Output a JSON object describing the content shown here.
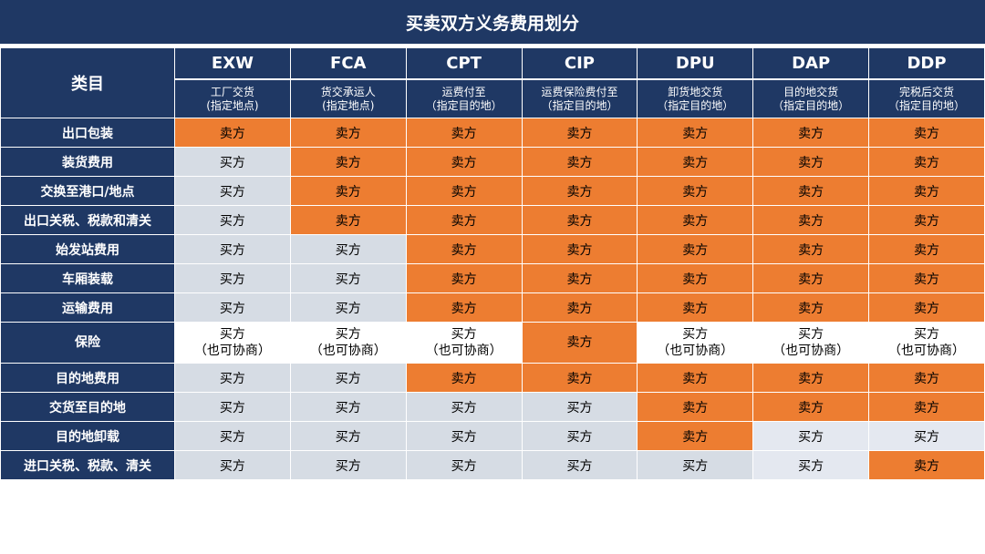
{
  "title": "买卖双方义务费用划分",
  "corner_label": "类目",
  "terms": [
    {
      "code": "EXW",
      "desc1": "工厂交货",
      "desc2": "(指定地点)"
    },
    {
      "code": "FCA",
      "desc1": "货交承运人",
      "desc2": "(指定地点)"
    },
    {
      "code": "CPT",
      "desc1": "运费付至",
      "desc2": "（指定目的地）"
    },
    {
      "code": "CIP",
      "desc1": "运费保险费付至",
      "desc2": "（指定目的地）"
    },
    {
      "code": "DPU",
      "desc1": "卸货地交货",
      "desc2": "（指定目的地）"
    },
    {
      "code": "DAP",
      "desc1": "目的地交货",
      "desc2": "（指定目的地）"
    },
    {
      "code": "DDP",
      "desc1": "完税后交货",
      "desc2": "（指定目的地）"
    }
  ],
  "rows": [
    {
      "label": "出口包装",
      "cells": [
        [
          "卖方",
          ""
        ],
        [
          "卖方",
          ""
        ],
        [
          "卖方",
          ""
        ],
        [
          "卖方",
          ""
        ],
        [
          "卖方",
          ""
        ],
        [
          "卖方",
          ""
        ],
        [
          "卖方",
          ""
        ]
      ]
    },
    {
      "label": "装货费用",
      "cells": [
        [
          "买方",
          ""
        ],
        [
          "卖方",
          ""
        ],
        [
          "卖方",
          ""
        ],
        [
          "卖方",
          ""
        ],
        [
          "卖方",
          ""
        ],
        [
          "卖方",
          ""
        ],
        [
          "卖方",
          ""
        ]
      ]
    },
    {
      "label": "交换至港口/地点",
      "cells": [
        [
          "买方",
          ""
        ],
        [
          "卖方",
          ""
        ],
        [
          "卖方",
          ""
        ],
        [
          "卖方",
          ""
        ],
        [
          "卖方",
          ""
        ],
        [
          "卖方",
          ""
        ],
        [
          "卖方",
          ""
        ]
      ]
    },
    {
      "label": "出口关税、税款和清关",
      "cells": [
        [
          "买方",
          ""
        ],
        [
          "卖方",
          ""
        ],
        [
          "卖方",
          ""
        ],
        [
          "卖方",
          ""
        ],
        [
          "卖方",
          ""
        ],
        [
          "卖方",
          ""
        ],
        [
          "卖方",
          ""
        ]
      ]
    },
    {
      "label": "始发站费用",
      "cells": [
        [
          "买方",
          ""
        ],
        [
          "买方",
          ""
        ],
        [
          "卖方",
          ""
        ],
        [
          "卖方",
          ""
        ],
        [
          "卖方",
          ""
        ],
        [
          "卖方",
          ""
        ],
        [
          "卖方",
          ""
        ]
      ]
    },
    {
      "label": "车厢装载",
      "cells": [
        [
          "买方",
          ""
        ],
        [
          "买方",
          ""
        ],
        [
          "卖方",
          ""
        ],
        [
          "卖方",
          ""
        ],
        [
          "卖方",
          ""
        ],
        [
          "卖方",
          ""
        ],
        [
          "卖方",
          ""
        ]
      ]
    },
    {
      "label": "运输费用",
      "cells": [
        [
          "买方",
          ""
        ],
        [
          "买方",
          ""
        ],
        [
          "卖方",
          ""
        ],
        [
          "卖方",
          ""
        ],
        [
          "卖方",
          ""
        ],
        [
          "卖方",
          ""
        ],
        [
          "卖方",
          ""
        ]
      ]
    },
    {
      "label": "保险",
      "cells": [
        [
          "买方",
          "（也可协商）"
        ],
        [
          "买方",
          "（也可协商）"
        ],
        [
          "买方",
          "（也可协商）"
        ],
        [
          "卖方",
          ""
        ],
        [
          "买方",
          "（也可协商）"
        ],
        [
          "买方",
          "（也可协商）"
        ],
        [
          "买方",
          "（也可协商）"
        ]
      ]
    },
    {
      "label": "目的地费用",
      "cells": [
        [
          "买方",
          ""
        ],
        [
          "买方",
          ""
        ],
        [
          "卖方",
          ""
        ],
        [
          "卖方",
          ""
        ],
        [
          "卖方",
          ""
        ],
        [
          "卖方",
          ""
        ],
        [
          "卖方",
          ""
        ]
      ]
    },
    {
      "label": "交货至目的地",
      "cells": [
        [
          "买方",
          ""
        ],
        [
          "买方",
          ""
        ],
        [
          "买方",
          ""
        ],
        [
          "买方",
          ""
        ],
        [
          "卖方",
          ""
        ],
        [
          "卖方",
          ""
        ],
        [
          "卖方",
          ""
        ]
      ]
    },
    {
      "label": "目的地卸载",
      "cells": [
        [
          "买方",
          ""
        ],
        [
          "买方",
          ""
        ],
        [
          "买方",
          ""
        ],
        [
          "买方",
          ""
        ],
        [
          "卖方",
          ""
        ],
        [
          "买方",
          ""
        ],
        [
          "买方",
          ""
        ]
      ]
    },
    {
      "label": "进口关税、税款、清关",
      "cells": [
        [
          "买方",
          ""
        ],
        [
          "买方",
          ""
        ],
        [
          "买方",
          ""
        ],
        [
          "买方",
          ""
        ],
        [
          "买方",
          ""
        ],
        [
          "买方",
          ""
        ],
        [
          "卖方",
          ""
        ]
      ]
    }
  ],
  "colors": {
    "header_navy": "#1f3864",
    "seller_orange": "#ed7d31",
    "buyer_gray": "#d6dce4",
    "negotiable_white": "#ffffff",
    "buyer_light": "#e4e8f0"
  }
}
